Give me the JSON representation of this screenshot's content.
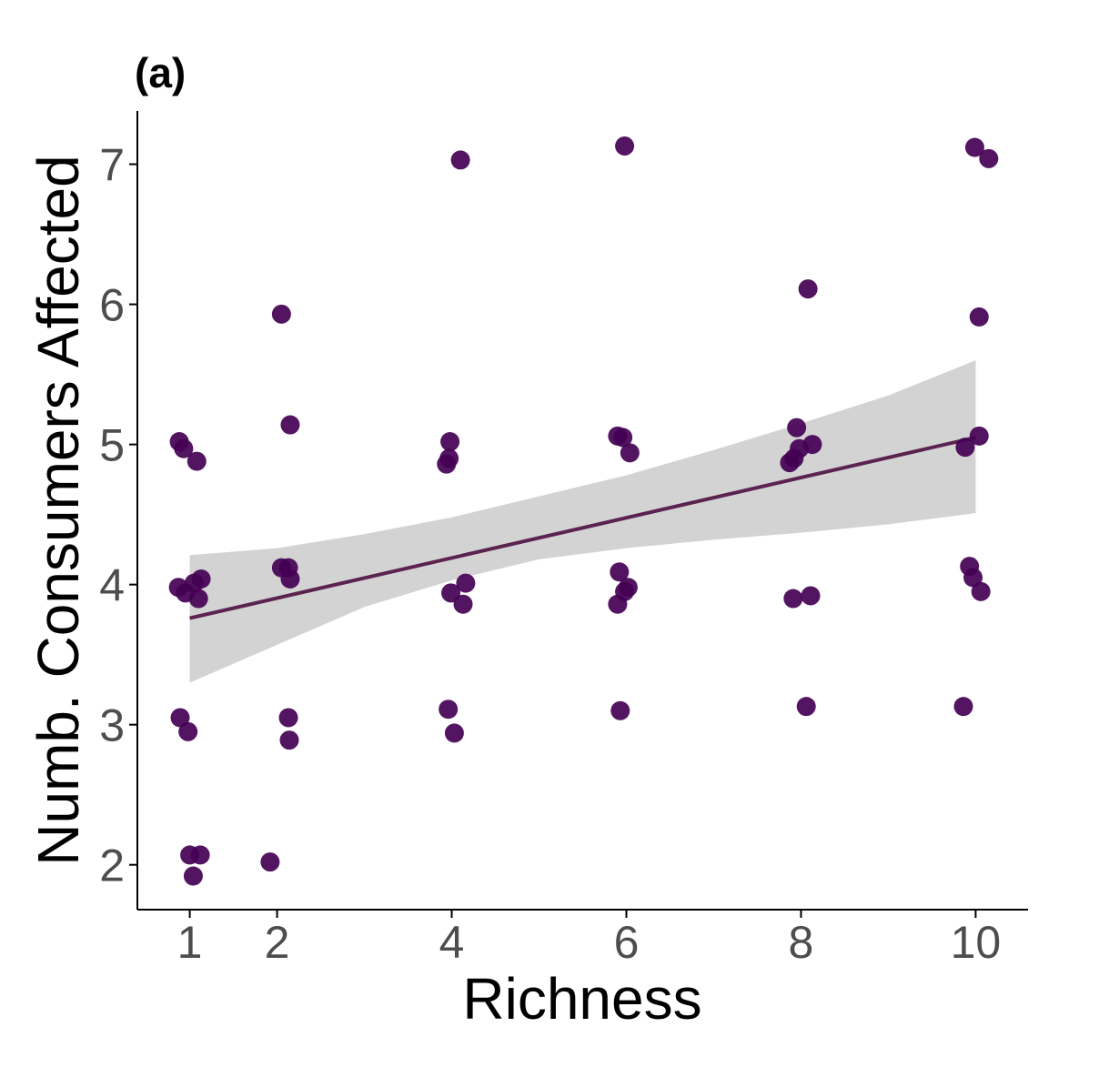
{
  "chart_data": {
    "type": "scatter",
    "panel_label": "(a)",
    "xlabel": "Richness",
    "ylabel": "Numb. Consumers Affected",
    "xlim": [
      0.4,
      10.6
    ],
    "ylim": [
      1.68,
      7.38
    ],
    "x_ticks": [
      1,
      2,
      4,
      6,
      8,
      10
    ],
    "y_ticks": [
      2,
      3,
      4,
      5,
      6,
      7
    ],
    "grid": false,
    "legend": "none",
    "colors": {
      "point": "#440154",
      "fit_line": "#5b2350",
      "confidence_band": "#d3d3d3",
      "axis": "#000000",
      "tick_label": "#4d4d4d"
    },
    "points": [
      {
        "x": 0.88,
        "y": 5.02
      },
      {
        "x": 0.93,
        "y": 4.97
      },
      {
        "x": 1.08,
        "y": 4.88
      },
      {
        "x": 0.87,
        "y": 3.98
      },
      {
        "x": 0.95,
        "y": 3.94
      },
      {
        "x": 1.05,
        "y": 4.01
      },
      {
        "x": 1.13,
        "y": 4.04
      },
      {
        "x": 1.1,
        "y": 3.9
      },
      {
        "x": 0.89,
        "y": 3.05
      },
      {
        "x": 0.98,
        "y": 2.95
      },
      {
        "x": 1.0,
        "y": 2.07
      },
      {
        "x": 1.12,
        "y": 2.07
      },
      {
        "x": 1.04,
        "y": 1.92
      },
      {
        "x": 2.05,
        "y": 5.93
      },
      {
        "x": 2.15,
        "y": 5.14
      },
      {
        "x": 2.05,
        "y": 4.12
      },
      {
        "x": 2.13,
        "y": 4.12
      },
      {
        "x": 2.15,
        "y": 4.04
      },
      {
        "x": 2.13,
        "y": 3.05
      },
      {
        "x": 2.14,
        "y": 2.89
      },
      {
        "x": 1.92,
        "y": 2.02
      },
      {
        "x": 4.1,
        "y": 7.03
      },
      {
        "x": 3.98,
        "y": 5.02
      },
      {
        "x": 3.97,
        "y": 4.9
      },
      {
        "x": 3.94,
        "y": 4.86
      },
      {
        "x": 4.16,
        "y": 4.01
      },
      {
        "x": 3.99,
        "y": 3.94
      },
      {
        "x": 4.13,
        "y": 3.86
      },
      {
        "x": 3.96,
        "y": 3.11
      },
      {
        "x": 4.03,
        "y": 2.94
      },
      {
        "x": 5.98,
        "y": 7.13
      },
      {
        "x": 5.9,
        "y": 5.06
      },
      {
        "x": 5.96,
        "y": 5.05
      },
      {
        "x": 6.04,
        "y": 4.94
      },
      {
        "x": 5.92,
        "y": 4.09
      },
      {
        "x": 6.02,
        "y": 3.98
      },
      {
        "x": 5.98,
        "y": 3.95
      },
      {
        "x": 5.9,
        "y": 3.86
      },
      {
        "x": 5.93,
        "y": 3.1
      },
      {
        "x": 8.08,
        "y": 6.11
      },
      {
        "x": 7.95,
        "y": 5.12
      },
      {
        "x": 8.13,
        "y": 5.0
      },
      {
        "x": 7.98,
        "y": 4.97
      },
      {
        "x": 7.92,
        "y": 4.9
      },
      {
        "x": 7.87,
        "y": 4.87
      },
      {
        "x": 7.91,
        "y": 3.9
      },
      {
        "x": 8.11,
        "y": 3.92
      },
      {
        "x": 8.06,
        "y": 3.13
      },
      {
        "x": 9.99,
        "y": 7.12
      },
      {
        "x": 10.15,
        "y": 7.04
      },
      {
        "x": 10.04,
        "y": 5.91
      },
      {
        "x": 10.04,
        "y": 5.06
      },
      {
        "x": 9.88,
        "y": 4.98
      },
      {
        "x": 9.93,
        "y": 4.13
      },
      {
        "x": 9.97,
        "y": 4.05
      },
      {
        "x": 10.06,
        "y": 3.95
      },
      {
        "x": 9.86,
        "y": 3.13
      }
    ],
    "fit_line": {
      "x": [
        1,
        10
      ],
      "y": [
        3.76,
        5.05
      ]
    },
    "confidence_band": {
      "x": [
        1,
        2,
        3,
        4,
        5,
        6,
        7,
        8,
        9,
        10
      ],
      "lower": [
        3.3,
        3.57,
        3.84,
        4.03,
        4.18,
        4.26,
        4.32,
        4.37,
        4.43,
        4.51
      ],
      "upper": [
        4.21,
        4.26,
        4.36,
        4.48,
        4.63,
        4.78,
        4.96,
        5.15,
        5.35,
        5.6
      ]
    }
  }
}
